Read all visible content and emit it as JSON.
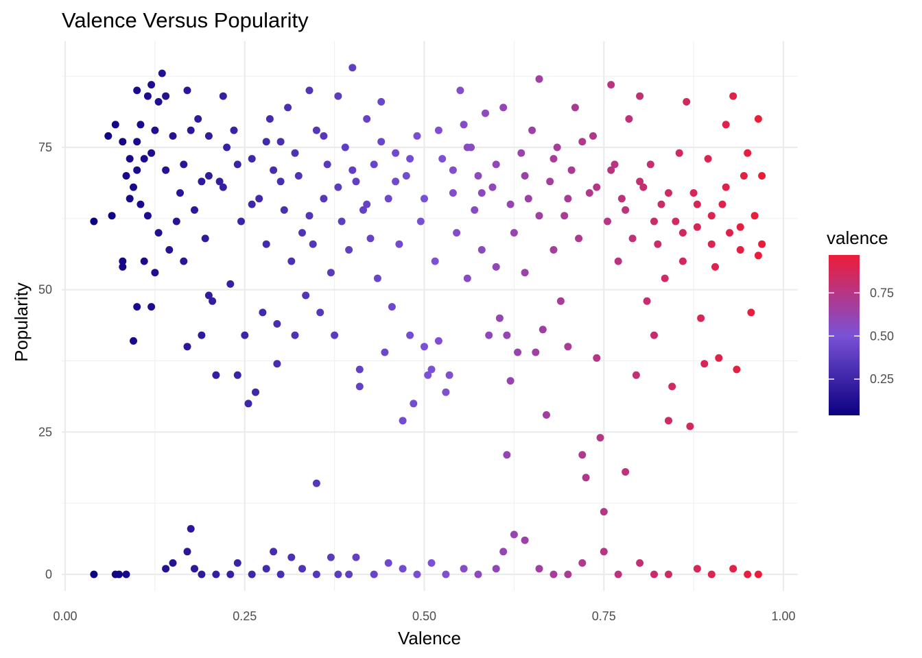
{
  "chart_data": {
    "type": "scatter",
    "title": "Valence Versus Popularity",
    "xlabel": "Valence",
    "ylabel": "Popularity",
    "xlim": [
      0.0,
      1.0
    ],
    "ylim": [
      0,
      90
    ],
    "x_ticks": [
      "0.00",
      "0.25",
      "0.50",
      "0.75",
      "1.00"
    ],
    "y_ticks": [
      "0",
      "25",
      "50",
      "75"
    ],
    "grid": true,
    "legend_placement": "right",
    "color_scale": {
      "title": "valence",
      "ticks": [
        "0.25",
        "0.50",
        "0.75"
      ],
      "low_color": "#0b0080",
      "mid_color": "#7a52d6",
      "high_color": "#ec1c38"
    },
    "points": [
      [
        0.04,
        62
      ],
      [
        0.06,
        77
      ],
      [
        0.065,
        63
      ],
      [
        0.07,
        79
      ],
      [
        0.08,
        55
      ],
      [
        0.08,
        54
      ],
      [
        0.08,
        76
      ],
      [
        0.085,
        70
      ],
      [
        0.09,
        73
      ],
      [
        0.09,
        66
      ],
      [
        0.095,
        68
      ],
      [
        0.095,
        41
      ],
      [
        0.1,
        85
      ],
      [
        0.1,
        76
      ],
      [
        0.1,
        71
      ],
      [
        0.1,
        47
      ],
      [
        0.105,
        79
      ],
      [
        0.105,
        65
      ],
      [
        0.11,
        73
      ],
      [
        0.11,
        55
      ],
      [
        0.115,
        84
      ],
      [
        0.115,
        63
      ],
      [
        0.12,
        86
      ],
      [
        0.12,
        74
      ],
      [
        0.12,
        47
      ],
      [
        0.125,
        78
      ],
      [
        0.125,
        53
      ],
      [
        0.13,
        83
      ],
      [
        0.13,
        60
      ],
      [
        0.135,
        88
      ],
      [
        0.14,
        84
      ],
      [
        0.14,
        71
      ],
      [
        0.145,
        57
      ],
      [
        0.15,
        77
      ],
      [
        0.155,
        62
      ],
      [
        0.16,
        67
      ],
      [
        0.165,
        72
      ],
      [
        0.165,
        55
      ],
      [
        0.17,
        85
      ],
      [
        0.17,
        40
      ],
      [
        0.175,
        78
      ],
      [
        0.18,
        64
      ],
      [
        0.185,
        80
      ],
      [
        0.19,
        69
      ],
      [
        0.19,
        42
      ],
      [
        0.195,
        59
      ],
      [
        0.2,
        77
      ],
      [
        0.2,
        49
      ],
      [
        0.205,
        48
      ],
      [
        0.21,
        35
      ],
      [
        0.215,
        69
      ],
      [
        0.22,
        84
      ],
      [
        0.225,
        75
      ],
      [
        0.23,
        51
      ],
      [
        0.235,
        78
      ],
      [
        0.24,
        35
      ],
      [
        0.245,
        62
      ],
      [
        0.25,
        42
      ],
      [
        0.255,
        30
      ],
      [
        0.26,
        73
      ],
      [
        0.265,
        32
      ],
      [
        0.27,
        66
      ],
      [
        0.275,
        46
      ],
      [
        0.28,
        58
      ],
      [
        0.285,
        80
      ],
      [
        0.29,
        71
      ],
      [
        0.295,
        37
      ],
      [
        0.295,
        44
      ],
      [
        0.3,
        76
      ],
      [
        0.305,
        64
      ],
      [
        0.31,
        82
      ],
      [
        0.315,
        55
      ],
      [
        0.32,
        42
      ],
      [
        0.325,
        70
      ],
      [
        0.33,
        60
      ],
      [
        0.335,
        49
      ],
      [
        0.34,
        85
      ],
      [
        0.345,
        58
      ],
      [
        0.35,
        78
      ],
      [
        0.355,
        46
      ],
      [
        0.36,
        66
      ],
      [
        0.365,
        72
      ],
      [
        0.37,
        53
      ],
      [
        0.375,
        42
      ],
      [
        0.38,
        84
      ],
      [
        0.385,
        62
      ],
      [
        0.39,
        75
      ],
      [
        0.395,
        57
      ],
      [
        0.4,
        89
      ],
      [
        0.405,
        69
      ],
      [
        0.41,
        36
      ],
      [
        0.41,
        33
      ],
      [
        0.415,
        64
      ],
      [
        0.42,
        80
      ],
      [
        0.425,
        59
      ],
      [
        0.43,
        72
      ],
      [
        0.435,
        52
      ],
      [
        0.44,
        83
      ],
      [
        0.445,
        39
      ],
      [
        0.45,
        66
      ],
      [
        0.455,
        47
      ],
      [
        0.46,
        74
      ],
      [
        0.465,
        58
      ],
      [
        0.47,
        27
      ],
      [
        0.475,
        70
      ],
      [
        0.48,
        42
      ],
      [
        0.485,
        30
      ],
      [
        0.49,
        77
      ],
      [
        0.495,
        62
      ],
      [
        0.5,
        40
      ],
      [
        0.505,
        35
      ],
      [
        0.51,
        36
      ],
      [
        0.515,
        55
      ],
      [
        0.52,
        41
      ],
      [
        0.525,
        73
      ],
      [
        0.53,
        32
      ],
      [
        0.535,
        35
      ],
      [
        0.54,
        67
      ],
      [
        0.545,
        60
      ],
      [
        0.55,
        85
      ],
      [
        0.555,
        79
      ],
      [
        0.56,
        52
      ],
      [
        0.565,
        75
      ],
      [
        0.57,
        64
      ],
      [
        0.575,
        70
      ],
      [
        0.58,
        57
      ],
      [
        0.585,
        81
      ],
      [
        0.59,
        42
      ],
      [
        0.595,
        68
      ],
      [
        0.6,
        54
      ],
      [
        0.605,
        45
      ],
      [
        0.61,
        82
      ],
      [
        0.615,
        42
      ],
      [
        0.62,
        34
      ],
      [
        0.625,
        60
      ],
      [
        0.63,
        39
      ],
      [
        0.635,
        74
      ],
      [
        0.64,
        53
      ],
      [
        0.645,
        66
      ],
      [
        0.65,
        78
      ],
      [
        0.655,
        39
      ],
      [
        0.66,
        87
      ],
      [
        0.665,
        43
      ],
      [
        0.67,
        28
      ],
      [
        0.675,
        69
      ],
      [
        0.68,
        57
      ],
      [
        0.685,
        75
      ],
      [
        0.69,
        48
      ],
      [
        0.695,
        63
      ],
      [
        0.7,
        40
      ],
      [
        0.705,
        71
      ],
      [
        0.71,
        82
      ],
      [
        0.715,
        59
      ],
      [
        0.72,
        21
      ],
      [
        0.725,
        17
      ],
      [
        0.73,
        67
      ],
      [
        0.735,
        77
      ],
      [
        0.74,
        38
      ],
      [
        0.745,
        24
      ],
      [
        0.75,
        11
      ],
      [
        0.755,
        62
      ],
      [
        0.76,
        86
      ],
      [
        0.765,
        72
      ],
      [
        0.77,
        55
      ],
      [
        0.775,
        66
      ],
      [
        0.78,
        18
      ],
      [
        0.785,
        80
      ],
      [
        0.79,
        59
      ],
      [
        0.795,
        35
      ],
      [
        0.8,
        84
      ],
      [
        0.805,
        68
      ],
      [
        0.81,
        48
      ],
      [
        0.815,
        72
      ],
      [
        0.82,
        42
      ],
      [
        0.825,
        58
      ],
      [
        0.83,
        65
      ],
      [
        0.835,
        52
      ],
      [
        0.84,
        27
      ],
      [
        0.845,
        33
      ],
      [
        0.85,
        62
      ],
      [
        0.855,
        74
      ],
      [
        0.86,
        55
      ],
      [
        0.865,
        83
      ],
      [
        0.87,
        26
      ],
      [
        0.875,
        67
      ],
      [
        0.88,
        61
      ],
      [
        0.885,
        45
      ],
      [
        0.89,
        37
      ],
      [
        0.895,
        73
      ],
      [
        0.9,
        58
      ],
      [
        0.905,
        54
      ],
      [
        0.91,
        38
      ],
      [
        0.915,
        65
      ],
      [
        0.92,
        79
      ],
      [
        0.925,
        60
      ],
      [
        0.93,
        84
      ],
      [
        0.935,
        36
      ],
      [
        0.94,
        57
      ],
      [
        0.945,
        70
      ],
      [
        0.95,
        74
      ],
      [
        0.955,
        46
      ],
      [
        0.96,
        63
      ],
      [
        0.965,
        80
      ],
      [
        0.965,
        56
      ],
      [
        0.97,
        58
      ],
      [
        0.97,
        70
      ],
      [
        0.2,
        70
      ],
      [
        0.22,
        68
      ],
      [
        0.24,
        72
      ],
      [
        0.26,
        65
      ],
      [
        0.28,
        76
      ],
      [
        0.3,
        69
      ],
      [
        0.32,
        74
      ],
      [
        0.34,
        63
      ],
      [
        0.36,
        77
      ],
      [
        0.38,
        68
      ],
      [
        0.4,
        71
      ],
      [
        0.42,
        65
      ],
      [
        0.44,
        76
      ],
      [
        0.46,
        69
      ],
      [
        0.48,
        73
      ],
      [
        0.5,
        66
      ],
      [
        0.52,
        78
      ],
      [
        0.54,
        71
      ],
      [
        0.56,
        75
      ],
      [
        0.58,
        67
      ],
      [
        0.6,
        72
      ],
      [
        0.62,
        65
      ],
      [
        0.64,
        70
      ],
      [
        0.66,
        63
      ],
      [
        0.68,
        73
      ],
      [
        0.7,
        66
      ],
      [
        0.72,
        76
      ],
      [
        0.74,
        68
      ],
      [
        0.76,
        71
      ],
      [
        0.78,
        64
      ],
      [
        0.8,
        69
      ],
      [
        0.82,
        62
      ],
      [
        0.84,
        67
      ],
      [
        0.86,
        60
      ],
      [
        0.88,
        65
      ],
      [
        0.9,
        63
      ],
      [
        0.92,
        68
      ],
      [
        0.94,
        61
      ],
      [
        0.04,
        0
      ],
      [
        0.07,
        0
      ],
      [
        0.075,
        0
      ],
      [
        0.085,
        0
      ],
      [
        0.14,
        1
      ],
      [
        0.15,
        2
      ],
      [
        0.17,
        4
      ],
      [
        0.175,
        8
      ],
      [
        0.18,
        1
      ],
      [
        0.19,
        0
      ],
      [
        0.21,
        0
      ],
      [
        0.23,
        0
      ],
      [
        0.24,
        2
      ],
      [
        0.26,
        0
      ],
      [
        0.28,
        1
      ],
      [
        0.29,
        4
      ],
      [
        0.3,
        0
      ],
      [
        0.315,
        3
      ],
      [
        0.33,
        1
      ],
      [
        0.35,
        0
      ],
      [
        0.37,
        3
      ],
      [
        0.38,
        0
      ],
      [
        0.395,
        0
      ],
      [
        0.405,
        3
      ],
      [
        0.43,
        0
      ],
      [
        0.45,
        2
      ],
      [
        0.47,
        1
      ],
      [
        0.49,
        0
      ],
      [
        0.51,
        2
      ],
      [
        0.53,
        0
      ],
      [
        0.555,
        1
      ],
      [
        0.575,
        0
      ],
      [
        0.6,
        1
      ],
      [
        0.61,
        4
      ],
      [
        0.625,
        7
      ],
      [
        0.64,
        6
      ],
      [
        0.66,
        1
      ],
      [
        0.68,
        0
      ],
      [
        0.7,
        0
      ],
      [
        0.72,
        2
      ],
      [
        0.75,
        4
      ],
      [
        0.77,
        0
      ],
      [
        0.8,
        2
      ],
      [
        0.82,
        0
      ],
      [
        0.84,
        0
      ],
      [
        0.88,
        1
      ],
      [
        0.9,
        0
      ],
      [
        0.93,
        1
      ],
      [
        0.95,
        0
      ],
      [
        0.965,
        0
      ],
      [
        0.35,
        16
      ],
      [
        0.615,
        21
      ]
    ]
  }
}
